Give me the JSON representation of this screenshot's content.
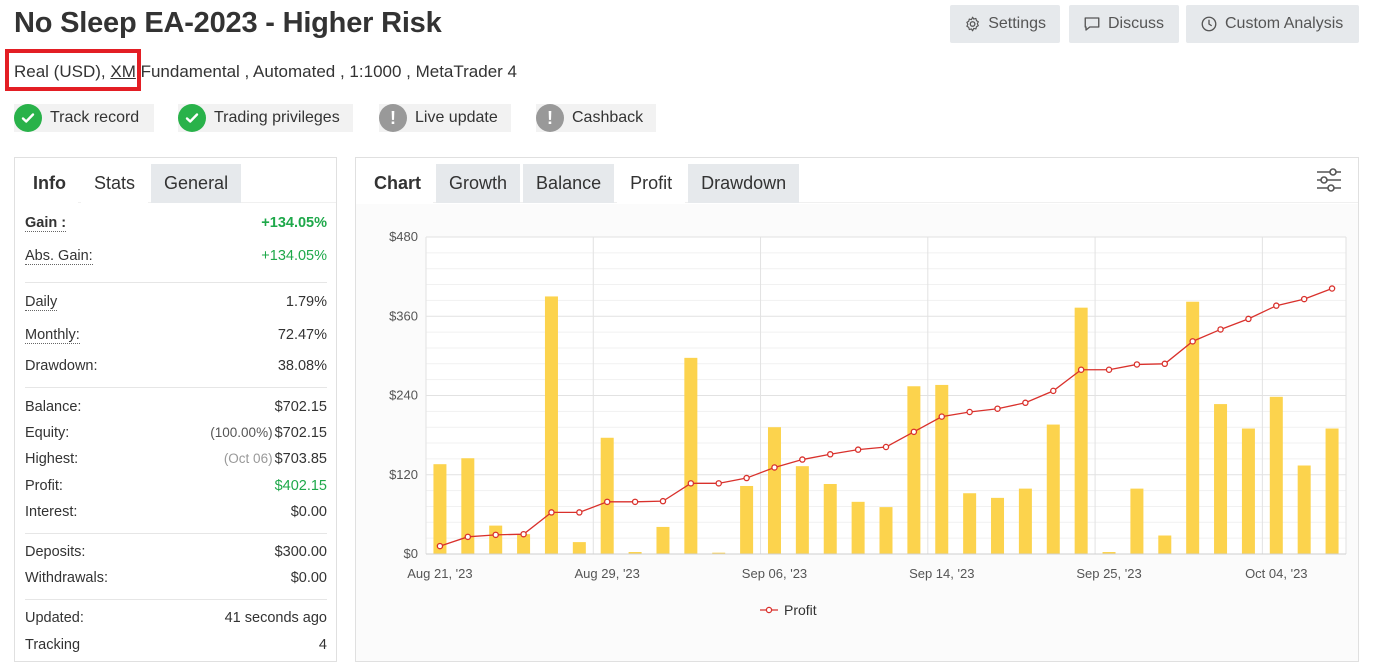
{
  "title": "No Sleep EA-2023 - Higher Risk",
  "toolbar": {
    "settings_label": "Settings",
    "discuss_label": "Discuss",
    "custom_analysis_label": "Custom Analysis"
  },
  "subtitle": {
    "account_type": "Real (USD), ",
    "broker": "XM",
    "rest": " Fundamental , Automated , 1:1000 , MetaTrader 4"
  },
  "badges": [
    {
      "label": "Track record",
      "status": "ok"
    },
    {
      "label": "Trading privileges",
      "status": "ok"
    },
    {
      "label": "Live update",
      "status": "warn"
    },
    {
      "label": "Cashback",
      "status": "warn"
    }
  ],
  "info_tabs": {
    "heading": "Info",
    "stats": "Stats",
    "general": "General"
  },
  "stats": {
    "gain": {
      "label": "Gain :",
      "value": "+134.05%"
    },
    "abs_gain": {
      "label": "Abs. Gain:",
      "value": "+134.05%"
    },
    "daily": {
      "label": "Daily",
      "value": "1.79%"
    },
    "monthly": {
      "label": "Monthly:",
      "value": "72.47%"
    },
    "drawdown": {
      "label": "Drawdown:",
      "value": "38.08%"
    },
    "balance": {
      "label": "Balance:",
      "value": "$702.15"
    },
    "equity": {
      "label": "Equity:",
      "sub": "(100.00%)",
      "value": "$702.15"
    },
    "highest": {
      "label": "Highest:",
      "sub": "(Oct 06)",
      "value": "$703.85"
    },
    "profit": {
      "label": "Profit:",
      "value": "$402.15"
    },
    "interest": {
      "label": "Interest:",
      "value": "$0.00"
    },
    "deposits": {
      "label": "Deposits:",
      "value": "$300.00"
    },
    "withdrawals": {
      "label": "Withdrawals:",
      "value": "$0.00"
    },
    "updated": {
      "label": "Updated:",
      "value": "41 seconds ago"
    },
    "tracking": {
      "label": "Tracking",
      "value": "4"
    }
  },
  "chart_tabs": {
    "heading": "Chart",
    "growth": "Growth",
    "balance": "Balance",
    "profit": "Profit",
    "drawdown": "Drawdown"
  },
  "colors": {
    "bar": "#fcd34d",
    "line": "#d9312c",
    "gain_green": "#1ea84a",
    "check_green": "#29b24a",
    "highlight_red": "#e31e24"
  },
  "chart_data": {
    "type": "bar",
    "y_ticks": [
      "$0",
      "$120",
      "$240",
      "$360",
      "$480"
    ],
    "ylim": [
      0,
      480
    ],
    "x_tick_labels": [
      "Aug 21, '23",
      "Aug 29, '23",
      "Sep 06, '23",
      "Sep 14, '23",
      "Sep 25, '23",
      "Oct 04, '23"
    ],
    "bar_values": [
      136,
      145,
      43,
      30,
      390,
      18,
      176,
      3,
      41,
      297,
      2,
      103,
      192,
      133,
      106,
      79,
      71,
      254,
      256,
      92,
      85,
      99,
      196,
      373,
      3,
      99,
      28,
      382,
      227,
      190,
      238,
      134,
      190
    ],
    "series": [
      {
        "name": "Profit",
        "values": [
          12,
          26,
          29,
          30,
          63,
          63,
          79,
          79,
          80,
          107,
          107,
          115,
          131,
          143,
          151,
          158,
          162,
          185,
          208,
          215,
          220,
          229,
          247,
          279,
          279,
          287,
          288,
          322,
          340,
          356,
          376,
          386,
          402
        ]
      }
    ],
    "grid": true,
    "legend": "bottom"
  }
}
